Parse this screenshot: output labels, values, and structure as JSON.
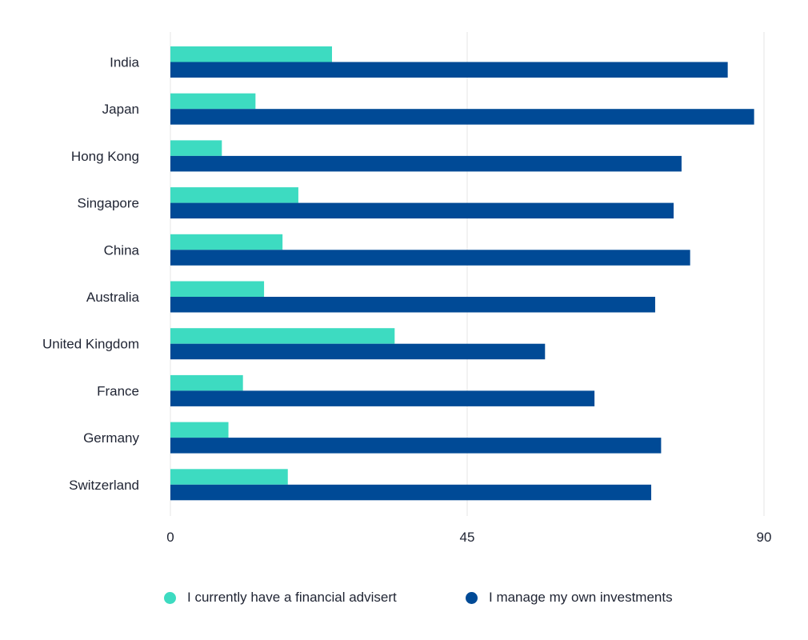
{
  "chart_data": {
    "type": "bar",
    "orientation": "horizontal",
    "categories": [
      "India",
      "Japan",
      "Hong Kong",
      "Singapore",
      "China",
      "Australia",
      "United Kingdom",
      "France",
      "Germany",
      "Switzerland"
    ],
    "series": [
      {
        "name": "I currently have a financial advisert",
        "color": "#3ddbc1",
        "values": [
          24.5,
          12.9,
          7.8,
          19.4,
          17.0,
          14.2,
          34.0,
          11.0,
          8.8,
          17.8
        ]
      },
      {
        "name": "I manage my own investments",
        "color": "#004a96",
        "values": [
          84.5,
          88.5,
          77.5,
          76.3,
          78.8,
          73.5,
          56.8,
          64.3,
          74.4,
          72.9
        ]
      }
    ],
    "xticks": [
      "0",
      "45",
      "90"
    ],
    "xlim": [
      0,
      90
    ],
    "grid": "vertical",
    "legend_position": "bottom"
  }
}
